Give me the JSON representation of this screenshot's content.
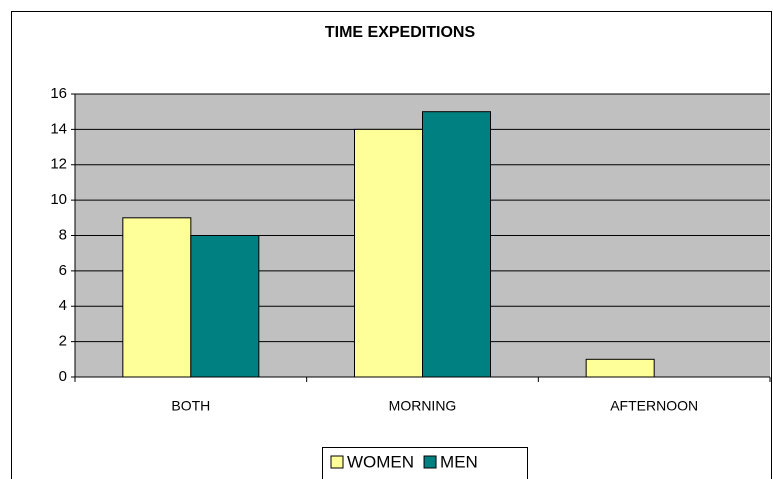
{
  "chart_data": {
    "type": "bar",
    "title": "TIME EXPEDITIONS",
    "categories": [
      "BOTH",
      "MORNING",
      "AFTERNOON"
    ],
    "series": [
      {
        "name": "WOMEN",
        "color": "#ffff99",
        "values": [
          9,
          14,
          1
        ]
      },
      {
        "name": "MEN",
        "color": "#008080",
        "values": [
          8,
          15,
          0
        ]
      }
    ],
    "ylim": [
      0,
      16
    ],
    "yticks": [
      0,
      2,
      4,
      6,
      8,
      10,
      12,
      14,
      16
    ],
    "grid": true,
    "legend": "bottom"
  }
}
